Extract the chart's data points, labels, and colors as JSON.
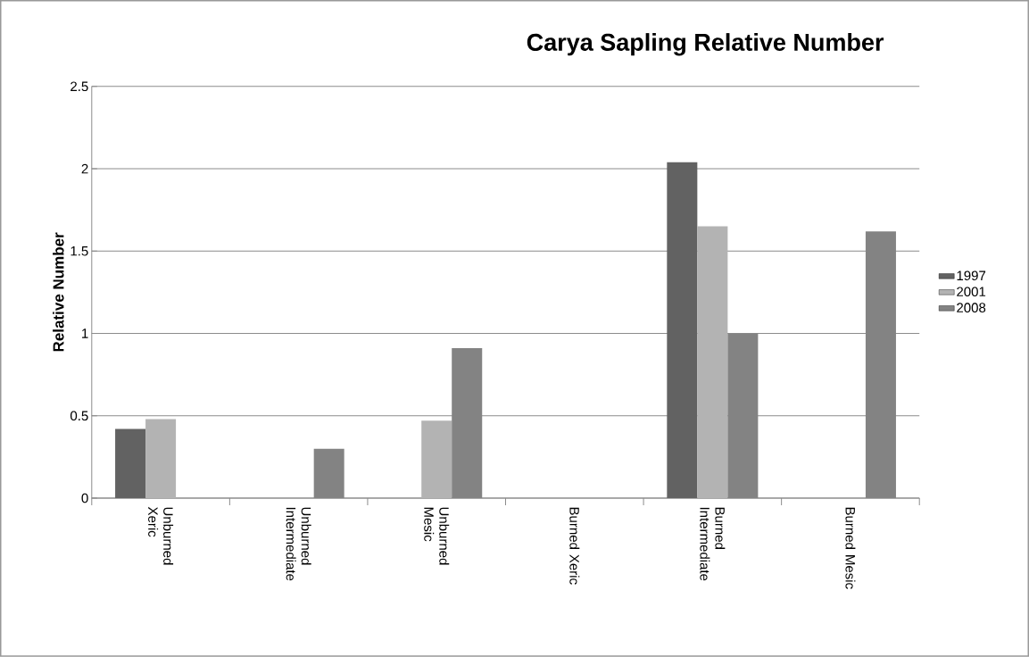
{
  "chart_data": {
    "type": "bar",
    "title": "Carya Sapling Relative Number",
    "ylabel": "Relative Number",
    "categories": [
      "Unburned Xeric",
      "Unburned Intermediate",
      "Unburned Mesic",
      "Burned Xeric",
      "Burned Intermediate",
      "Burned Mesic"
    ],
    "series": [
      {
        "name": "1997",
        "color": "#626262",
        "values": [
          0.42,
          0,
          0,
          0,
          2.04,
          0
        ]
      },
      {
        "name": "2001",
        "color": "#b3b3b3",
        "values": [
          0.48,
          0,
          0.47,
          0,
          1.65,
          0
        ]
      },
      {
        "name": "2008",
        "color": "#838383",
        "values": [
          0,
          0.3,
          0.91,
          0,
          1.0,
          1.62
        ]
      }
    ],
    "ylim": [
      0,
      2.5
    ],
    "yticks": [
      0,
      0.5,
      1,
      1.5,
      2,
      2.5
    ],
    "grid": "y",
    "legend": "right"
  }
}
